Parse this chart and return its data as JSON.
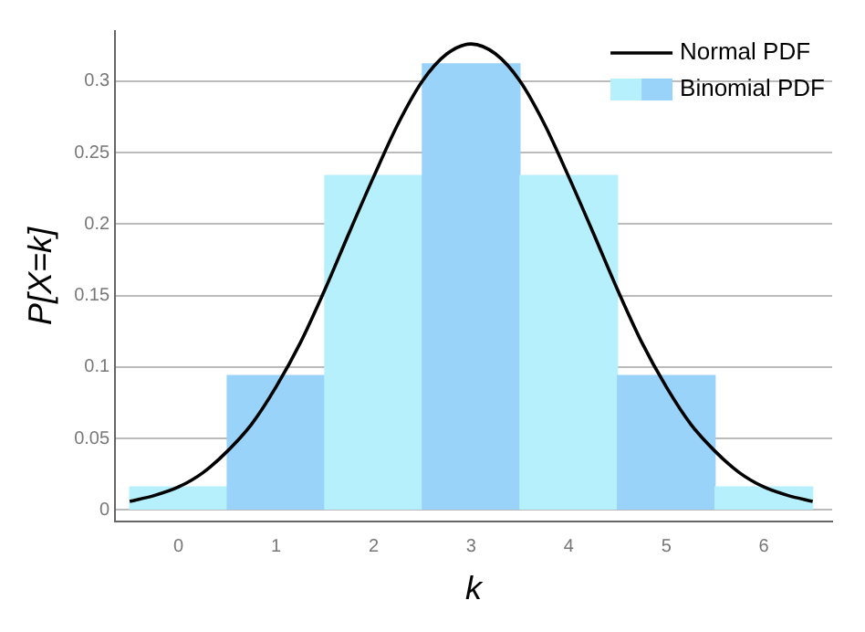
{
  "chart_data": {
    "type": "bar",
    "xlabel": "k",
    "ylabel": "P[X=k]",
    "x": [
      0,
      1,
      2,
      3,
      4,
      5,
      6
    ],
    "xlim": [
      -0.65,
      6.7
    ],
    "xticks": [
      0,
      1,
      2,
      3,
      4,
      5,
      6
    ],
    "ylim": [
      -0.008,
      0.335
    ],
    "yticks": [
      0,
      0.05,
      0.1,
      0.15,
      0.2,
      0.25,
      0.3
    ],
    "grid": "y",
    "legend": "top right",
    "series": [
      {
        "name": "Normal PDF",
        "type": "line",
        "color": "#000000",
        "marker": "none",
        "x": [
          -0.5,
          -0.25,
          0,
          0.25,
          0.5,
          0.75,
          1,
          1.25,
          1.5,
          1.75,
          2,
          2.25,
          2.5,
          2.75,
          3,
          3.25,
          3.5,
          3.75,
          4,
          4.25,
          4.5,
          4.75,
          5,
          5.25,
          5.5,
          5.75,
          6,
          6.25,
          6.5
        ],
        "values": [
          0.006,
          0.01,
          0.016,
          0.026,
          0.041,
          0.06,
          0.086,
          0.117,
          0.154,
          0.194,
          0.233,
          0.27,
          0.3,
          0.319,
          0.326,
          0.319,
          0.3,
          0.27,
          0.233,
          0.194,
          0.154,
          0.117,
          0.086,
          0.06,
          0.041,
          0.026,
          0.016,
          0.01,
          0.006
        ]
      },
      {
        "name": "Binomial PDF",
        "color": "#99d3fa",
        "colors": [
          "#b5f0fc",
          "#99d3fa",
          "#b5f0fc",
          "#99d3fa",
          "#b5f0fc",
          "#99d3fa",
          "#b5f0fc"
        ],
        "values": [
          0.016,
          0.094,
          0.234,
          0.312,
          0.234,
          0.094,
          0.016
        ]
      }
    ]
  }
}
